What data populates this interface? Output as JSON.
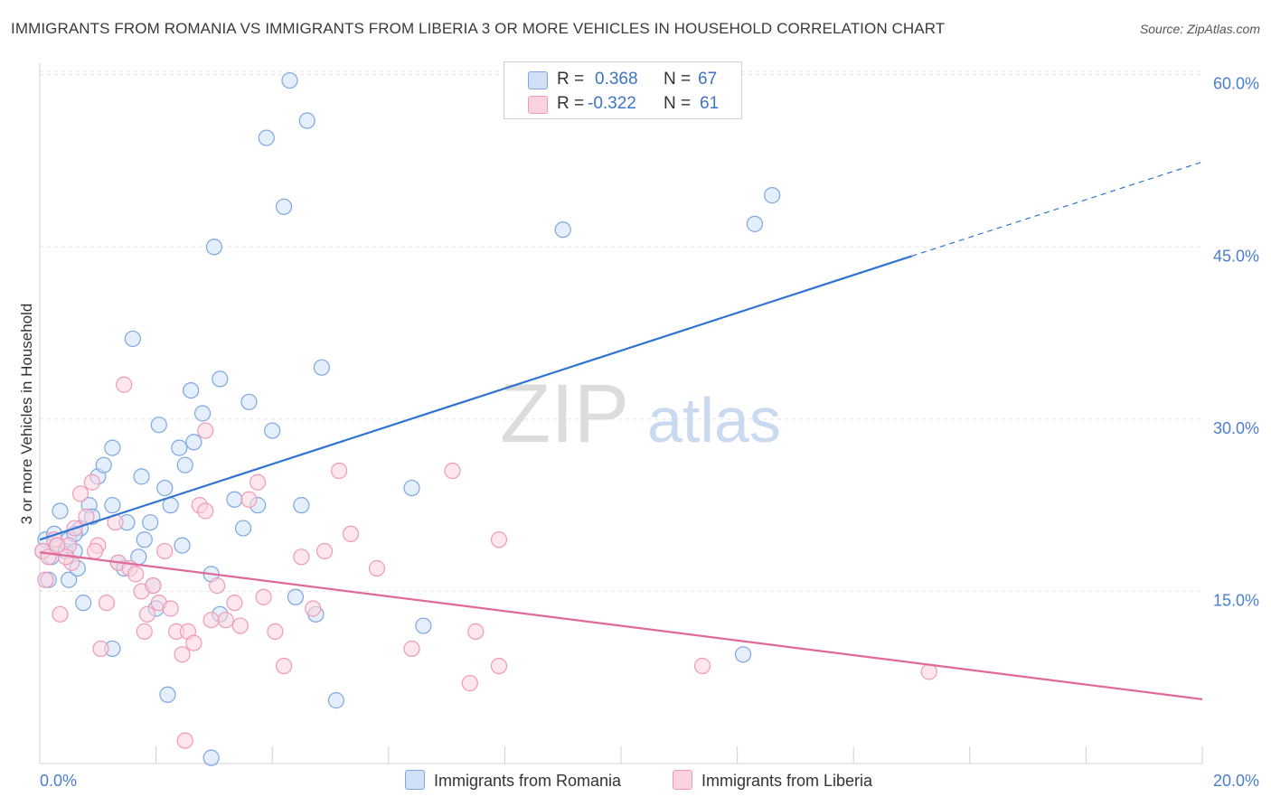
{
  "chart_data": {
    "type": "scatter",
    "title": "IMMIGRANTS FROM ROMANIA VS IMMIGRANTS FROM LIBERIA 3 OR MORE VEHICLES IN HOUSEHOLD CORRELATION CHART",
    "source": "Source: ZipAtlas.com",
    "xlabel": "",
    "ylabel": "3 or more Vehicles in Household",
    "xlim": [
      0,
      20
    ],
    "ylim": [
      0,
      61
    ],
    "x_tick_labels": [
      "0.0%",
      "20.0%"
    ],
    "y_ticks": [
      15,
      30,
      45,
      60
    ],
    "y_tick_labels": [
      "15.0%",
      "30.0%",
      "45.0%",
      "60.0%"
    ],
    "watermark": {
      "zip": "ZIP",
      "atlas": "atlas"
    },
    "legend": {
      "r_label": "R =",
      "n_label": "N =",
      "entries": [
        {
          "name": "Immigrants from Romania",
          "r": "0.368",
          "n": "67",
          "color": "#a9c6ef",
          "line_color": "#2f74d0"
        },
        {
          "name": "Immigrants from Liberia",
          "r": "-0.322",
          "n": "61",
          "color": "#f7b8cc",
          "line_color": "#e0699a"
        }
      ]
    },
    "series": [
      {
        "name": "Immigrants from Romania",
        "color": "#a9c6ef",
        "trend": {
          "x": [
            0,
            15
          ],
          "y": [
            19.5,
            44.2
          ],
          "dashed_to": [
            20,
            52.4
          ]
        },
        "points": [
          [
            0.1,
            19.5
          ],
          [
            0.2,
            18.0
          ],
          [
            0.25,
            20.0
          ],
          [
            0.3,
            19.0
          ],
          [
            0.35,
            22.0
          ],
          [
            0.45,
            18.5
          ],
          [
            0.5,
            19.5
          ],
          [
            0.6,
            18.5
          ],
          [
            0.7,
            20.5
          ],
          [
            0.75,
            14.0
          ],
          [
            0.85,
            22.5
          ],
          [
            1.0,
            25.0
          ],
          [
            1.1,
            26.0
          ],
          [
            1.25,
            22.5
          ],
          [
            1.25,
            27.5
          ],
          [
            1.35,
            17.5
          ],
          [
            1.5,
            21.0
          ],
          [
            1.6,
            37.0
          ],
          [
            1.7,
            18.0
          ],
          [
            1.75,
            25.0
          ],
          [
            1.8,
            19.5
          ],
          [
            1.9,
            21.0
          ],
          [
            1.95,
            15.5
          ],
          [
            2.0,
            13.5
          ],
          [
            2.05,
            29.5
          ],
          [
            2.15,
            24.0
          ],
          [
            2.25,
            22.5
          ],
          [
            2.4,
            27.5
          ],
          [
            2.45,
            19.0
          ],
          [
            2.5,
            26.0
          ],
          [
            2.6,
            32.5
          ],
          [
            2.65,
            28.0
          ],
          [
            2.8,
            30.5
          ],
          [
            2.95,
            16.5
          ],
          [
            3.0,
            45.0
          ],
          [
            3.1,
            13.0
          ],
          [
            3.1,
            33.5
          ],
          [
            3.35,
            23.0
          ],
          [
            3.5,
            20.5
          ],
          [
            3.6,
            31.5
          ],
          [
            3.75,
            22.5
          ],
          [
            3.9,
            54.5
          ],
          [
            4.0,
            29.0
          ],
          [
            4.2,
            48.5
          ],
          [
            4.3,
            59.5
          ],
          [
            4.4,
            14.5
          ],
          [
            4.5,
            22.5
          ],
          [
            4.6,
            56.0
          ],
          [
            4.75,
            13.0
          ],
          [
            4.85,
            34.5
          ],
          [
            5.1,
            5.5
          ],
          [
            0.15,
            16.0
          ],
          [
            0.5,
            16.0
          ],
          [
            0.6,
            20.0
          ],
          [
            0.65,
            17.0
          ],
          [
            1.25,
            10.0
          ],
          [
            2.2,
            6.0
          ],
          [
            2.95,
            0.5
          ],
          [
            6.4,
            24.0
          ],
          [
            6.6,
            12.0
          ],
          [
            9.0,
            46.5
          ],
          [
            12.1,
            9.5
          ],
          [
            12.3,
            47.0
          ],
          [
            12.6,
            49.5
          ],
          [
            0.05,
            18.5
          ],
          [
            0.9,
            21.5
          ],
          [
            1.45,
            17.0
          ]
        ]
      },
      {
        "name": "Immigrants from Liberia",
        "color": "#f7b8cc",
        "trend": {
          "x": [
            0,
            20
          ],
          "y": [
            18.4,
            5.6
          ]
        },
        "points": [
          [
            0.05,
            18.5
          ],
          [
            0.15,
            18.0
          ],
          [
            0.25,
            19.5
          ],
          [
            0.35,
            13.0
          ],
          [
            0.5,
            19.0
          ],
          [
            0.55,
            17.5
          ],
          [
            0.6,
            20.5
          ],
          [
            0.7,
            23.5
          ],
          [
            0.8,
            21.5
          ],
          [
            0.9,
            24.5
          ],
          [
            1.0,
            19.0
          ],
          [
            1.05,
            10.0
          ],
          [
            1.15,
            14.0
          ],
          [
            1.3,
            21.0
          ],
          [
            1.35,
            17.5
          ],
          [
            1.45,
            33.0
          ],
          [
            1.55,
            17.0
          ],
          [
            1.65,
            16.5
          ],
          [
            1.75,
            15.0
          ],
          [
            1.85,
            13.0
          ],
          [
            1.95,
            15.5
          ],
          [
            2.05,
            14.0
          ],
          [
            2.15,
            18.5
          ],
          [
            2.25,
            13.5
          ],
          [
            2.35,
            11.5
          ],
          [
            2.45,
            9.5
          ],
          [
            2.55,
            11.5
          ],
          [
            2.65,
            10.5
          ],
          [
            2.75,
            22.5
          ],
          [
            2.85,
            29.0
          ],
          [
            2.95,
            12.5
          ],
          [
            3.05,
            15.5
          ],
          [
            3.2,
            12.5
          ],
          [
            3.35,
            14.0
          ],
          [
            3.45,
            12.0
          ],
          [
            3.6,
            23.0
          ],
          [
            3.75,
            24.5
          ],
          [
            3.85,
            14.5
          ],
          [
            4.05,
            11.5
          ],
          [
            4.2,
            8.5
          ],
          [
            4.5,
            18.0
          ],
          [
            4.7,
            13.5
          ],
          [
            4.9,
            18.5
          ],
          [
            5.15,
            25.5
          ],
          [
            5.35,
            20.0
          ],
          [
            5.8,
            17.0
          ],
          [
            6.4,
            10.0
          ],
          [
            7.1,
            25.5
          ],
          [
            7.4,
            7.0
          ],
          [
            7.5,
            11.5
          ],
          [
            7.9,
            8.5
          ],
          [
            7.9,
            19.5
          ],
          [
            11.4,
            8.5
          ],
          [
            15.3,
            8.0
          ],
          [
            0.1,
            16.0
          ],
          [
            0.45,
            18.0
          ],
          [
            0.95,
            18.5
          ],
          [
            1.8,
            11.5
          ],
          [
            2.5,
            2.0
          ],
          [
            2.85,
            22.0
          ],
          [
            0.3,
            19.0
          ]
        ]
      }
    ]
  }
}
